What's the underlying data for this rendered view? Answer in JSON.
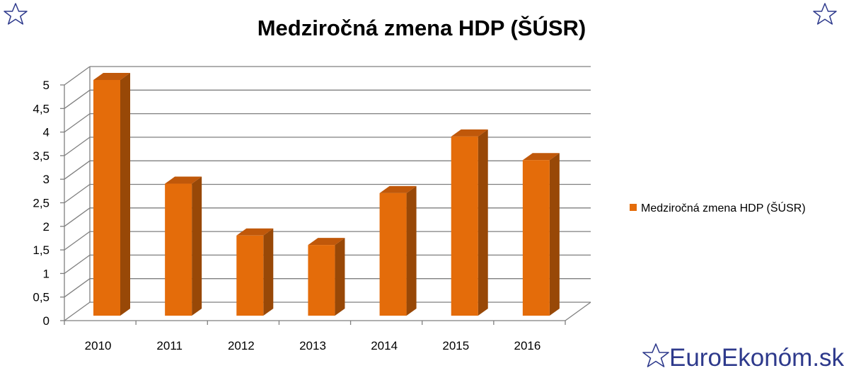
{
  "colors": {
    "bar_front": "#e46c0a",
    "bar_side": "#984807",
    "bar_top": "#c0580a",
    "grid": "#7f7f7f",
    "brand": "#2e3a8c"
  },
  "icons": {
    "corner_left": "star-outline-icon",
    "corner_right": "star-outline-icon",
    "brand": "star-outline-icon"
  },
  "brand": {
    "text": "EuroEkonóm.sk"
  },
  "chart_data": {
    "type": "bar",
    "title": "Medziročná zmena HDP (ŠÚSR)",
    "categories": [
      "2010",
      "2011",
      "2012",
      "2013",
      "2014",
      "2015",
      "2016"
    ],
    "series": [
      {
        "name": "Medziročná zmena HDP (ŠÚSR)",
        "values": [
          5.0,
          2.8,
          1.7,
          1.5,
          2.6,
          3.8,
          3.3
        ]
      }
    ],
    "yticks": [
      "0",
      "0,5",
      "1",
      "1,5",
      "2",
      "2,5",
      "3",
      "3,5",
      "4",
      "4,5",
      "5"
    ],
    "ylim": [
      0,
      5
    ],
    "grid": true,
    "legend_position": "right",
    "xlabel": "",
    "ylabel": ""
  }
}
